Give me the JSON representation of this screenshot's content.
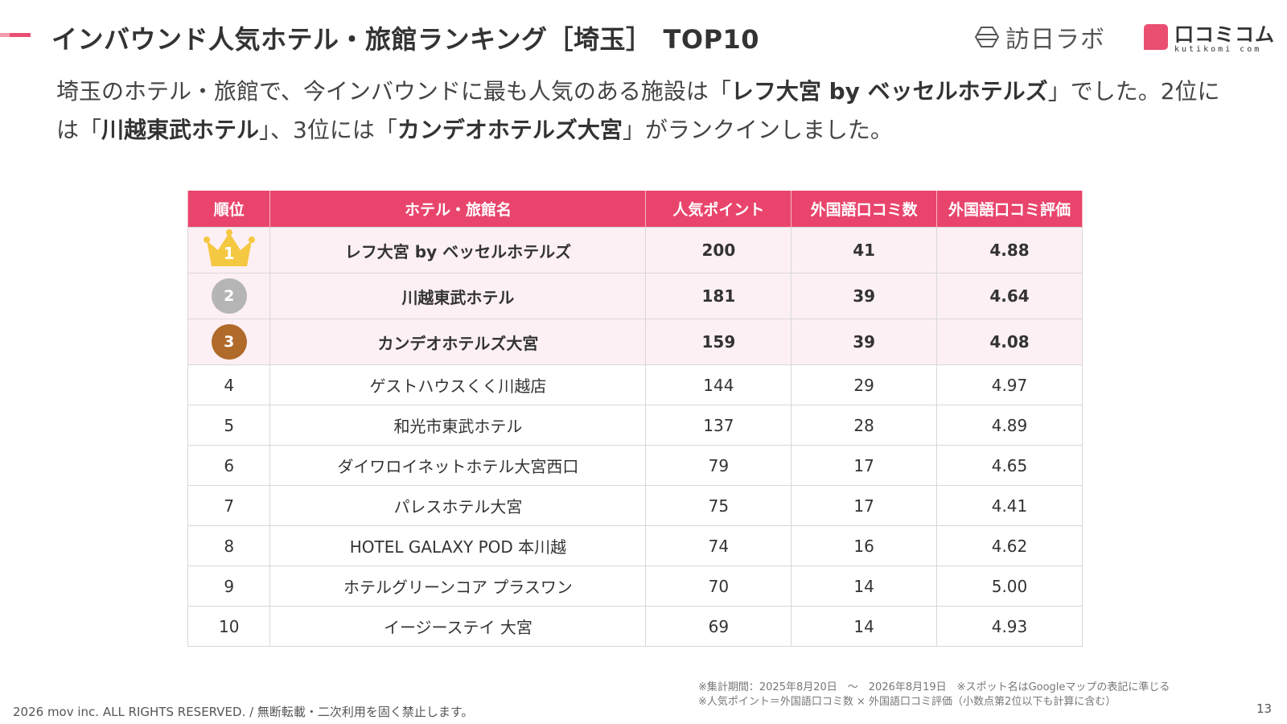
{
  "title": {
    "main": "インバウンド人気ホテル・旅館ランキング［埼玉］",
    "sub": "TOP10"
  },
  "logos": {
    "left": "訪日ラボ",
    "right_jp": "口コミコム",
    "right_en": "kutikomi com"
  },
  "lead": {
    "p1": "埼玉のホテル・旅館で、今インバウンドに最も人気のある施設は「",
    "b1": "レフ大宮 by ベッセルホテルズ",
    "p2": "」でした。2位には「",
    "b2": "川越東武ホテル",
    "p3": "」、3位には「",
    "b3": "カンデオホテルズ大宮",
    "p4": "」がランクインしました。"
  },
  "table": {
    "headers": [
      "順位",
      "ホテル・旅館名",
      "人気ポイント",
      "外国語口コミ数",
      "外国語口コミ評価"
    ],
    "rows": [
      {
        "rank": "1",
        "name": "レフ大宮 by ベッセルホテルズ",
        "points": "200",
        "count": "41",
        "rating": "4.88"
      },
      {
        "rank": "2",
        "name": "川越東武ホテル",
        "points": "181",
        "count": "39",
        "rating": "4.64"
      },
      {
        "rank": "3",
        "name": "カンデオホテルズ大宮",
        "points": "159",
        "count": "39",
        "rating": "4.08"
      },
      {
        "rank": "4",
        "name": "ゲストハウスくく川越店",
        "points": "144",
        "count": "29",
        "rating": "4.97"
      },
      {
        "rank": "5",
        "name": "和光市東武ホテル",
        "points": "137",
        "count": "28",
        "rating": "4.89"
      },
      {
        "rank": "6",
        "name": "ダイワロイネットホテル大宮西口",
        "points": "79",
        "count": "17",
        "rating": "4.65"
      },
      {
        "rank": "7",
        "name": "パレスホテル大宮",
        "points": "75",
        "count": "17",
        "rating": "4.41"
      },
      {
        "rank": "8",
        "name": "HOTEL GALAXY POD 本川越",
        "points": "74",
        "count": "16",
        "rating": "4.62"
      },
      {
        "rank": "9",
        "name": "ホテルグリーンコア プラスワン",
        "points": "70",
        "count": "14",
        "rating": "5.00"
      },
      {
        "rank": "10",
        "name": "イージーステイ 大宮",
        "points": "69",
        "count": "14",
        "rating": "4.93"
      }
    ]
  },
  "footnotes": [
    "※集計期間：2025年8月20日　〜　2026年8月19日　※スポット名はGoogleマップの表記に準じる",
    "※人気ポイント＝外国語口コミ数 × 外国語口コミ評価（小数点第2位以下も計算に含む）"
  ],
  "copyright": "2026 mov inc. ALL RIGHTS RESERVED. / 無断転載・二次利用を固く禁止します。",
  "page_number": "13",
  "colors": {
    "accent": "#e9456c",
    "row_highlight": "#fdf0f4",
    "gold": "#f5c842",
    "silver": "#b5b5b5",
    "bronze": "#b06a2a"
  }
}
